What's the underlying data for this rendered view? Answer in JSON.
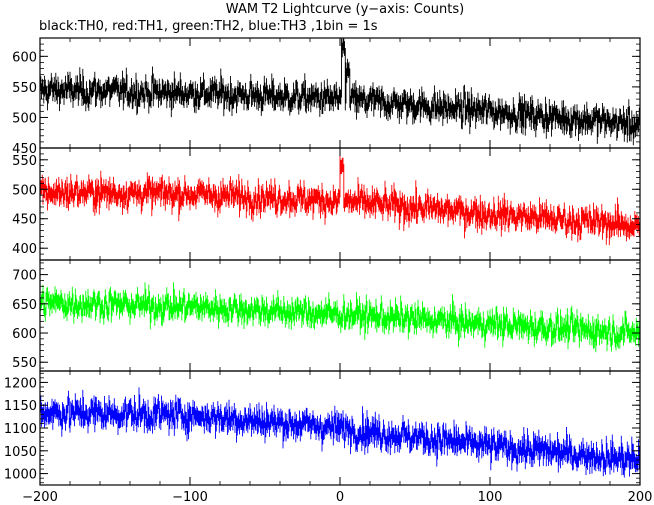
{
  "title": "WAM T2 Lightcurve (y−axis: Counts)",
  "subtitle": "black:TH0, red:TH1, green:TH2, blue:TH3 ,1bin = 1s",
  "chart_data": [
    {
      "type": "line",
      "name": "TH0",
      "color": "#000000",
      "xlim": [
        -200,
        200
      ],
      "ylim": [
        450,
        630
      ],
      "yticks": [
        450,
        500,
        550,
        600
      ],
      "baseline": [
        [
          -200,
          545
        ],
        [
          -100,
          540
        ],
        [
          0,
          530
        ],
        [
          100,
          510
        ],
        [
          200,
          488
        ]
      ],
      "noise": 22,
      "features": [
        [
          2,
          615
        ],
        [
          5,
          575
        ]
      ]
    },
    {
      "type": "line",
      "name": "TH1",
      "color": "#ff0000",
      "xlim": [
        -200,
        200
      ],
      "ylim": [
        380,
        570
      ],
      "yticks": [
        400,
        450,
        500,
        550
      ],
      "baseline": [
        [
          -200,
          495
        ],
        [
          -100,
          492
        ],
        [
          0,
          480
        ],
        [
          100,
          458
        ],
        [
          200,
          438
        ]
      ],
      "noise": 22,
      "features": [
        [
          1,
          540
        ]
      ]
    },
    {
      "type": "line",
      "name": "TH2",
      "color": "#00ff00",
      "xlim": [
        -200,
        200
      ],
      "ylim": [
        535,
        725
      ],
      "yticks": [
        550,
        600,
        650,
        700
      ],
      "baseline": [
        [
          -200,
          652
        ],
        [
          -100,
          645
        ],
        [
          0,
          632
        ],
        [
          100,
          615
        ],
        [
          200,
          600
        ]
      ],
      "noise": 22,
      "features": []
    },
    {
      "type": "line",
      "name": "TH3",
      "color": "#0000ff",
      "xlim": [
        -200,
        200
      ],
      "ylim": [
        975,
        1225
      ],
      "yticks": [
        1000,
        1050,
        1100,
        1150,
        1200
      ],
      "baseline": [
        [
          -200,
          1135
        ],
        [
          -100,
          1128
        ],
        [
          0,
          1100
        ],
        [
          100,
          1060
        ],
        [
          200,
          1030
        ]
      ],
      "noise": 30,
      "features": []
    }
  ],
  "xticks": [
    -200,
    -100,
    0,
    100,
    200
  ],
  "xtick_labels": [
    "−200",
    "−100",
    "0",
    "100",
    "200"
  ]
}
